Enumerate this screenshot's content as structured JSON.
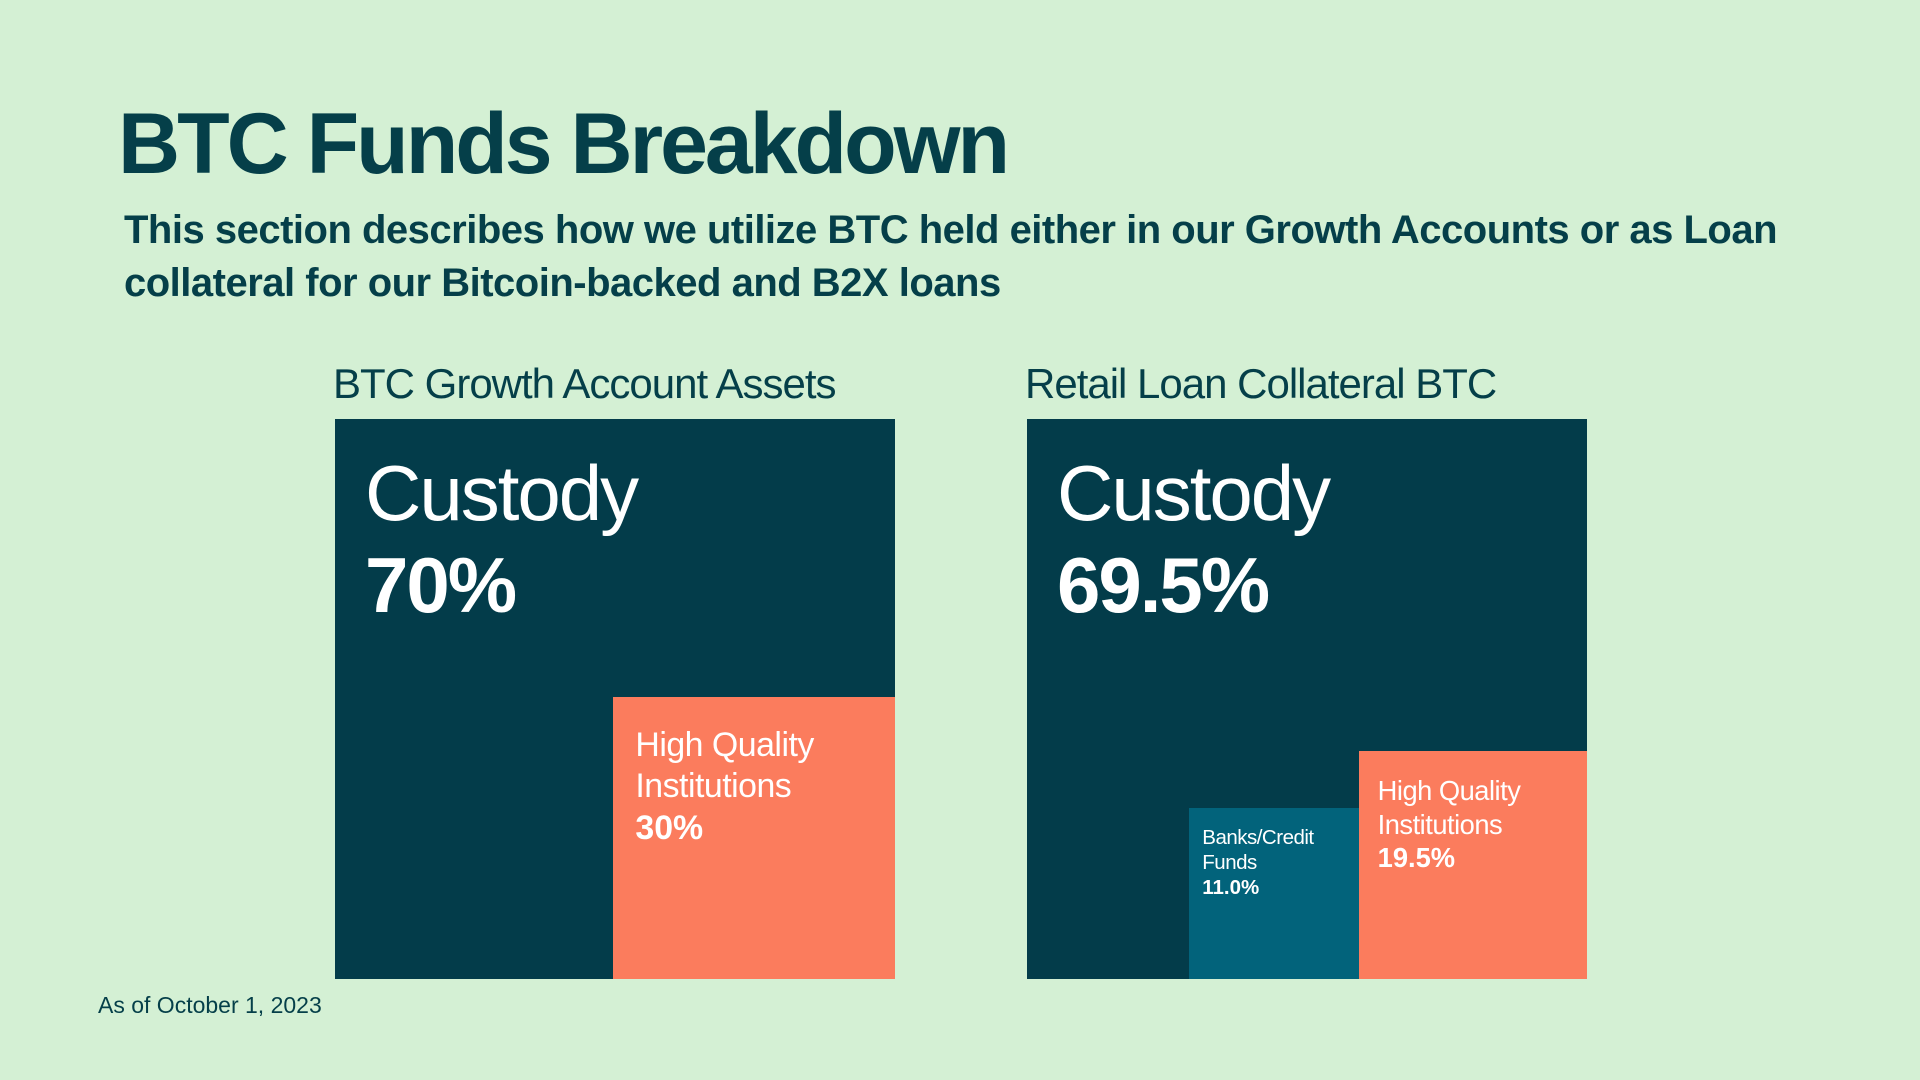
{
  "title": "BTC Funds Breakdown",
  "subtitle": "This section describes how we utilize BTC held either in our Growth Accounts or as Loan collateral for our Bitcoin-backed and B2X loans",
  "footnote": "As of October 1, 2023",
  "chart_data": [
    {
      "type": "nested-squares",
      "title": "BTC Growth Account Assets",
      "categories": [
        "Custody",
        "High Quality Institutions"
      ],
      "values": [
        70,
        30
      ],
      "value_labels": [
        "70%",
        "30%"
      ],
      "colors": [
        "#033c4a",
        "#fb7c5d"
      ]
    },
    {
      "type": "nested-squares",
      "title": "Retail Loan Collateral BTC",
      "categories": [
        "Custody",
        "High Quality Institutions",
        "Banks/Credit Funds"
      ],
      "values": [
        69.5,
        19.5,
        11
      ],
      "value_labels": [
        "69.5%",
        "19.5%",
        "11.0%"
      ],
      "colors": [
        "#033c4a",
        "#fb7c5d",
        "#02637b"
      ]
    }
  ]
}
